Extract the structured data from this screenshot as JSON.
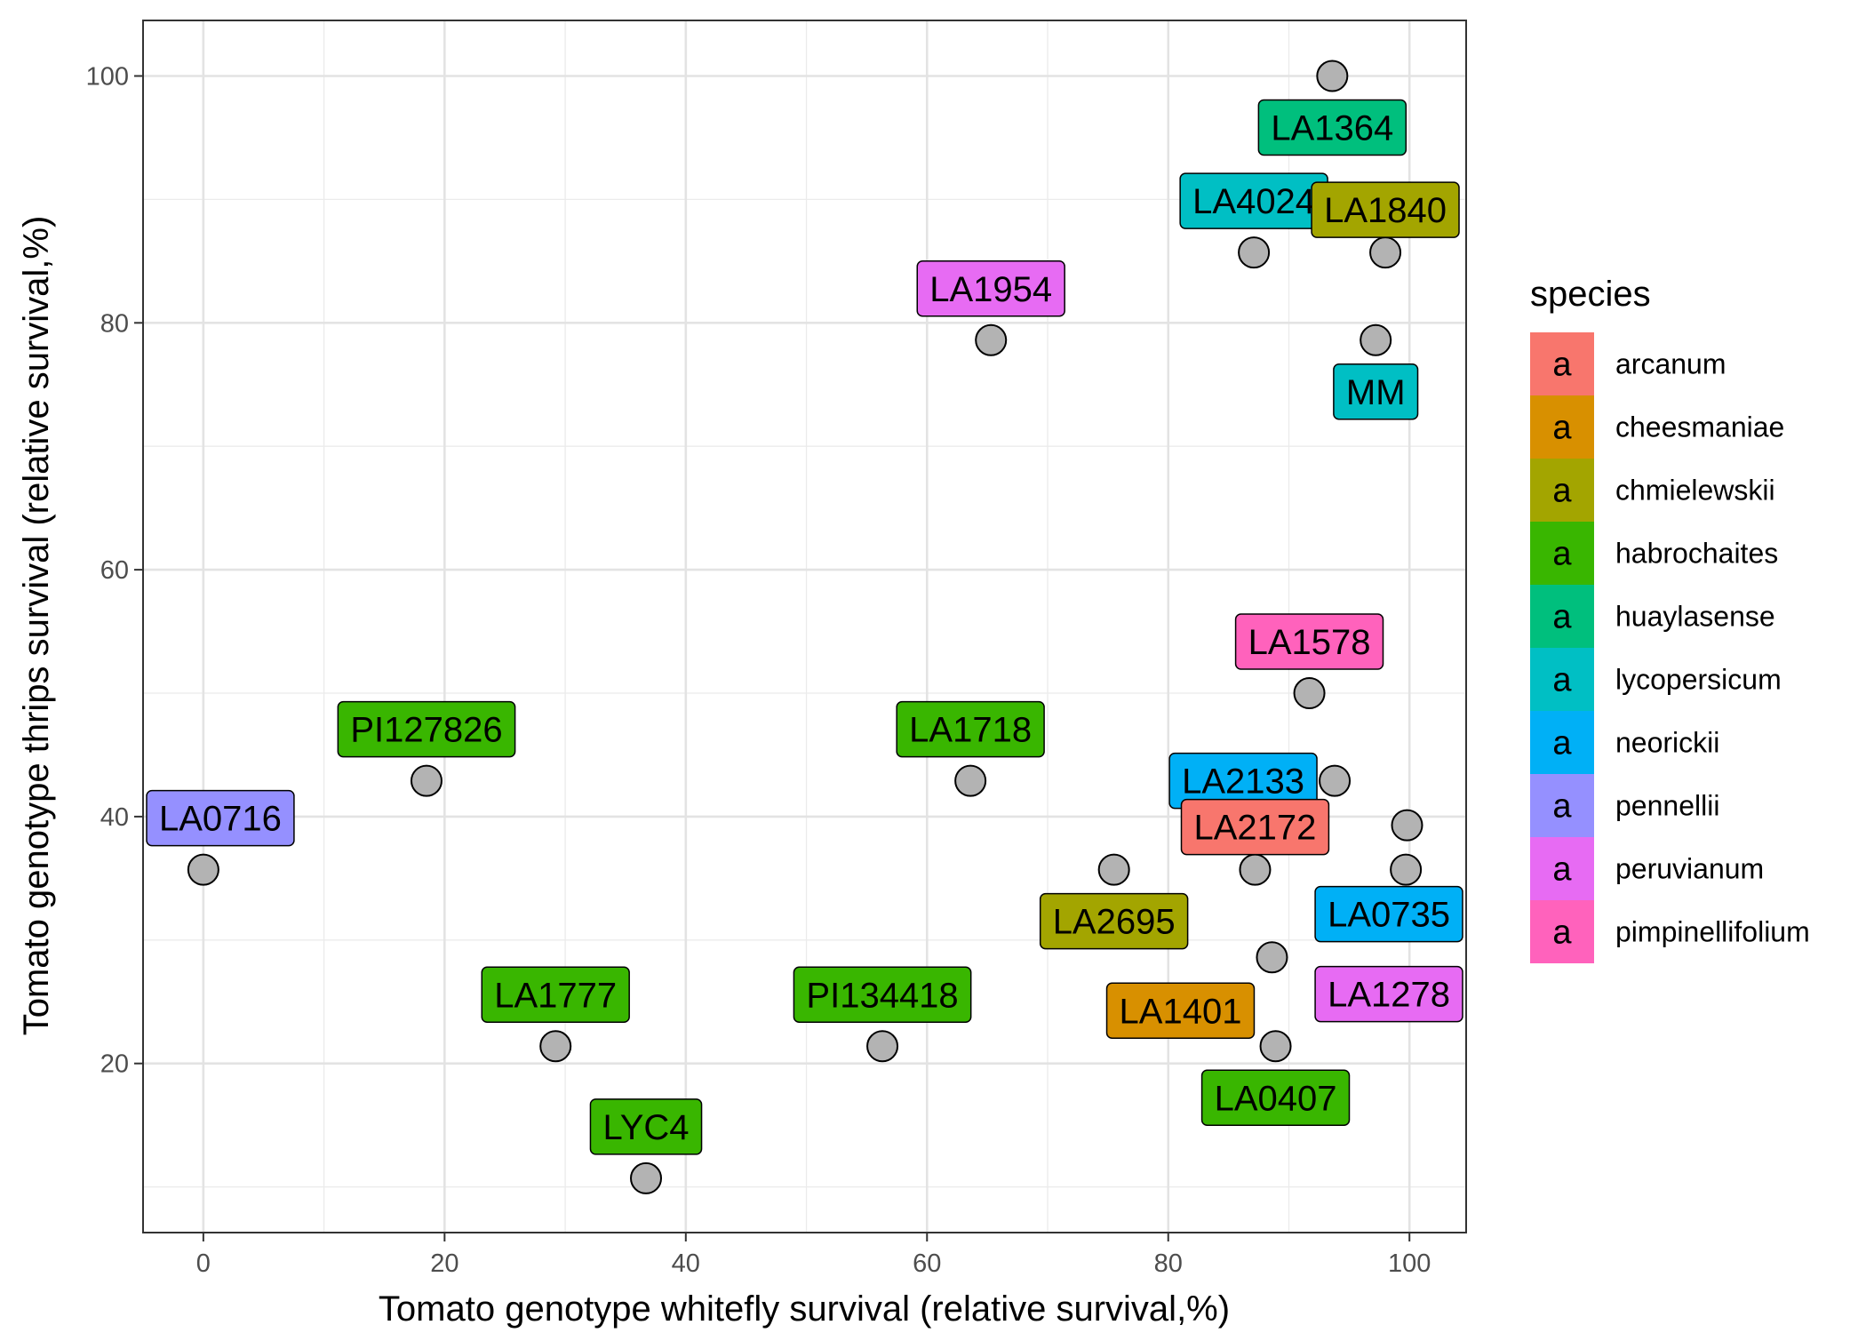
{
  "chart_data": {
    "type": "scatter",
    "title": "",
    "xlabel": "Tomato genotype whitefly survival (relative survival,%)",
    "ylabel": "Tomato genotype thrips survival (relative survival,%)",
    "xlim": [
      -5,
      104.7
    ],
    "ylim": [
      6.3,
      104.5
    ],
    "x_ticks": [
      0,
      20,
      40,
      60,
      80,
      100
    ],
    "y_ticks": [
      20,
      40,
      60,
      80,
      100
    ],
    "grid": true,
    "legend": {
      "title": "species",
      "position": "right",
      "key_glyph": "a",
      "entries": [
        {
          "name": "arcanum",
          "color": "#F8766D"
        },
        {
          "name": "cheesmaniae",
          "color": "#D89000"
        },
        {
          "name": "chmielewskii",
          "color": "#A3A500"
        },
        {
          "name": "habrochaites",
          "color": "#39B600"
        },
        {
          "name": "huaylasense",
          "color": "#00BF7D"
        },
        {
          "name": "lycopersicum",
          "color": "#00BFC4"
        },
        {
          "name": "neorickii",
          "color": "#00B0F6"
        },
        {
          "name": "pennellii",
          "color": "#9590FF"
        },
        {
          "name": "peruvianum",
          "color": "#E76BF3"
        },
        {
          "name": "pimpinellifolium",
          "color": "#FF62BC"
        }
      ]
    },
    "point_color": "#b3b3b3",
    "points": [
      {
        "label": "LA1364",
        "x": 93.6,
        "y": 100.0,
        "species": "huaylasense"
      },
      {
        "label": "LA4024",
        "x": 87.1,
        "y": 85.7,
        "species": "lycopersicum"
      },
      {
        "label": "LA1840",
        "x": 98.0,
        "y": 85.7,
        "species": "chmielewskii"
      },
      {
        "label": "MM",
        "x": 97.2,
        "y": 78.6,
        "species": "lycopersicum"
      },
      {
        "label": "LA1954",
        "x": 65.3,
        "y": 78.6,
        "species": "peruvianum"
      },
      {
        "label": "LA1578",
        "x": 91.7,
        "y": 50.0,
        "species": "pimpinellifolium"
      },
      {
        "label": "LA2133",
        "x": 93.8,
        "y": 42.9,
        "species": "neorickii"
      },
      {
        "label": "PI127826",
        "x": 18.5,
        "y": 42.9,
        "species": "habrochaites"
      },
      {
        "label": "LA1718",
        "x": 63.6,
        "y": 42.9,
        "species": "habrochaites"
      },
      {
        "label": "LA0735",
        "x": 99.8,
        "y": 39.3,
        "species": "neorickii"
      },
      {
        "label": "LA2695",
        "x": 75.5,
        "y": 35.7,
        "species": "chmielewskii"
      },
      {
        "label": "LA0716",
        "x": 0.0,
        "y": 35.7,
        "species": "pennellii"
      },
      {
        "label": "LA1278",
        "x": 99.7,
        "y": 35.7,
        "species": "peruvianum"
      },
      {
        "label": "LA2172",
        "x": 87.2,
        "y": 35.7,
        "species": "arcanum"
      },
      {
        "label": "LA1401",
        "x": 88.6,
        "y": 28.6,
        "species": "cheesmaniae"
      },
      {
        "label": "LA0407",
        "x": 88.9,
        "y": 21.4,
        "species": "habrochaites"
      },
      {
        "label": "LA1777",
        "x": 29.2,
        "y": 21.4,
        "species": "habrochaites"
      },
      {
        "label": "PI134418",
        "x": 56.3,
        "y": 21.4,
        "species": "habrochaites"
      },
      {
        "label": "LYC4",
        "x": 36.7,
        "y": 10.7,
        "species": "habrochaites"
      }
    ]
  }
}
